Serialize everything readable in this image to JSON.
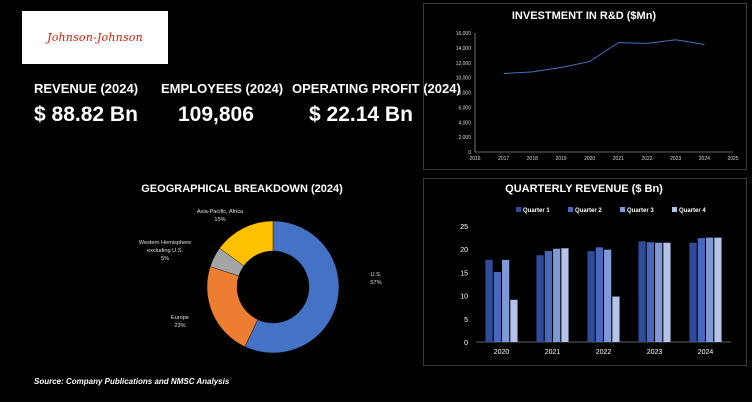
{
  "brand": {
    "logo_text": "Johnson-Johnson"
  },
  "kpis": [
    {
      "label": "REVENUE (2024)",
      "value": "$ 88.82 Bn"
    },
    {
      "label": "EMPLOYEES (2024)",
      "value": "109,806"
    },
    {
      "label": "OPERATING PROFIT (2024)",
      "value": "$ 22.14 Bn"
    }
  ],
  "source_text": "Source: Company Publications and NMSC Analysis",
  "colors": {
    "background": "#000000",
    "line": "#4472c4",
    "q1": "#2f4b9a",
    "q2": "#4a68bd",
    "q3": "#7f98d6",
    "q4": "#b4c3ea",
    "us": "#4472c4",
    "europe": "#ed7d31",
    "western": "#a5a5a5",
    "asia": "#ffc000"
  },
  "chart_data": [
    {
      "type": "line",
      "title": "INVESTMENT IN R&D ($Mn)",
      "x": [
        2017,
        2018,
        2019,
        2020,
        2021,
        2022,
        2023,
        2024
      ],
      "series": [
        {
          "values": [
            10550,
            10770,
            11360,
            12160,
            14710,
            14600,
            15090,
            14450
          ]
        }
      ],
      "xlim": [
        2016,
        2025
      ],
      "xticks": [
        2016,
        2017,
        2018,
        2019,
        2020,
        2021,
        2022,
        2023,
        2024,
        2025
      ],
      "ylim": [
        0,
        16000
      ],
      "yticks": [
        "0",
        "2,000",
        "4,000",
        "6,000",
        "8,000",
        "10,000",
        "12,000",
        "14,000",
        "16,000"
      ],
      "grid": false
    },
    {
      "type": "pie",
      "title": "GEOGRAPHICAL BREAKDOWN (2024)",
      "donut": true,
      "slices": [
        {
          "label": "U.S.",
          "value": 57,
          "pct_label": "57%",
          "color_key": "us"
        },
        {
          "label": "Europe",
          "value": 23,
          "pct_label": "23%",
          "color_key": "europe"
        },
        {
          "label": "Western Hemisphere excluding U.S.",
          "label_lines": [
            "Western Hemisphere",
            "excluding U.S."
          ],
          "value": 5,
          "pct_label": "5%",
          "color_key": "western"
        },
        {
          "label": "Asia-Pacific, Africa",
          "value": 15,
          "pct_label": "15%",
          "color_key": "asia"
        }
      ]
    },
    {
      "type": "bar",
      "title": "QUARTERLY REVENUE ($ Bn)",
      "categories": [
        "2020",
        "2021",
        "2022",
        "2023",
        "2024"
      ],
      "series": [
        {
          "name": "Quarter 1",
          "values": [
            17.7,
            18.7,
            19.6,
            21.7,
            21.4
          ]
        },
        {
          "name": "Quarter 2",
          "values": [
            15.1,
            19.6,
            20.4,
            21.5,
            22.4
          ]
        },
        {
          "name": "Quarter 3",
          "values": [
            17.7,
            20.1,
            19.9,
            21.4,
            22.5
          ]
        },
        {
          "name": "Quarter 4",
          "values": [
            9.1,
            20.2,
            9.8,
            21.4,
            22.5
          ]
        }
      ],
      "ylim": [
        0,
        25
      ],
      "yticks": [
        "0",
        "5",
        "10",
        "15",
        "20",
        "25"
      ],
      "legend": "top",
      "grid": false
    }
  ]
}
